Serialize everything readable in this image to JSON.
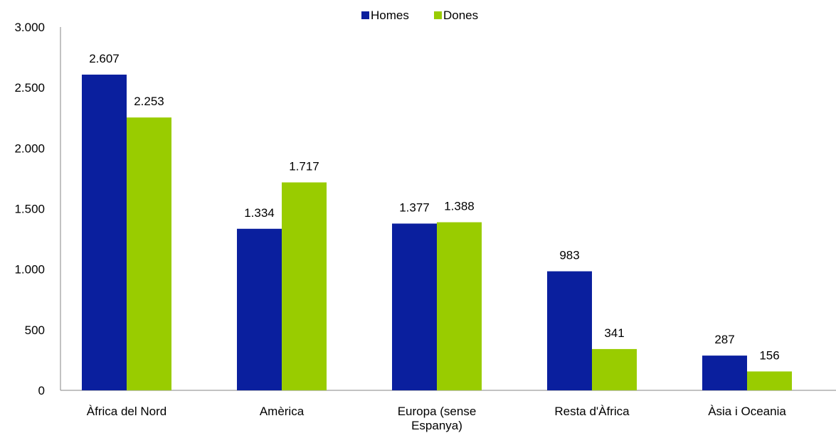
{
  "chart_data": {
    "type": "bar",
    "title": "",
    "xlabel": "",
    "ylabel": "",
    "ylim": [
      0,
      3000
    ],
    "yticks": [
      0,
      500,
      1000,
      1500,
      2000,
      2500,
      3000
    ],
    "ytick_labels": [
      "0",
      "500",
      "1.000",
      "1.500",
      "2.000",
      "2.500",
      "3.000"
    ],
    "categories": [
      [
        "Àfrica del Nord"
      ],
      [
        "Amèrica"
      ],
      [
        "Europa (sense",
        "Espanya)"
      ],
      [
        "Resta d'Àfrica"
      ],
      [
        "Àsia i Oceania"
      ]
    ],
    "series": [
      {
        "name": "Homes",
        "color": "#0a1f9e",
        "values": [
          2607,
          1334,
          1377,
          983,
          287
        ],
        "labels": [
          "2.607",
          "1.334",
          "1.377",
          "983",
          "287"
        ]
      },
      {
        "name": "Dones",
        "color": "#99cc00",
        "values": [
          2253,
          1717,
          1388,
          341,
          156
        ],
        "labels": [
          "2.253",
          "1.717",
          "1.388",
          "341",
          "156"
        ]
      }
    ],
    "legend_position": "top-center",
    "grid": false
  }
}
